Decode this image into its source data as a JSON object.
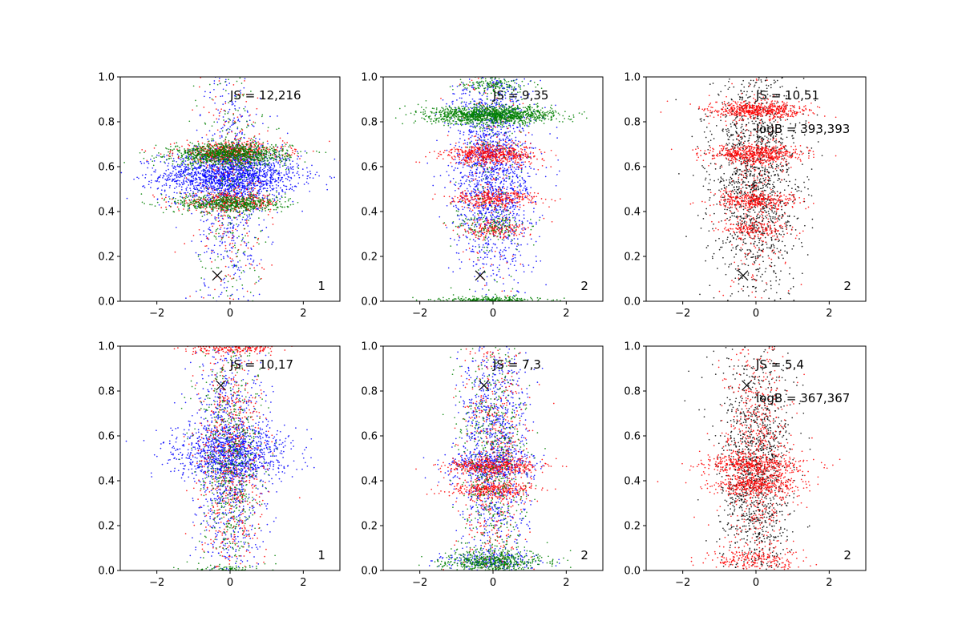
{
  "chart_data": [
    {
      "type": "scatter",
      "xlim": [
        -3,
        3
      ],
      "ylim": [
        0,
        1
      ],
      "xticks": [
        -2,
        0,
        2
      ],
      "yticks": [
        0.0,
        0.2,
        0.4,
        0.6,
        0.8,
        1.0
      ],
      "xtick_labels": [
        "−2",
        "0",
        "2"
      ],
      "ytick_labels": [
        "0.0",
        "0.2",
        "0.4",
        "0.6",
        "0.8",
        "1.0"
      ],
      "annotations": [
        "JS = 12,216"
      ],
      "corner_label": "1",
      "marker": {
        "symbol": "x",
        "x": -0.35,
        "y": 0.115
      },
      "series": [
        {
          "color": "#0000ff",
          "clusters": [
            {
              "y": 0.56,
              "sx": 0.95,
              "sy": 0.055,
              "n": 1700
            },
            {
              "y": 0.5,
              "sx": 0.45,
              "sy": 0.28,
              "n": 600
            }
          ]
        },
        {
          "color": "#ff0000",
          "clusters": [
            {
              "y": 0.665,
              "sx": 0.75,
              "sy": 0.022,
              "n": 550
            },
            {
              "y": 0.44,
              "sx": 0.7,
              "sy": 0.02,
              "n": 350
            },
            {
              "y": 0.5,
              "sx": 0.45,
              "sy": 0.3,
              "n": 280
            }
          ]
        },
        {
          "color": "#008000",
          "clusters": [
            {
              "y": 0.655,
              "sx": 0.8,
              "sy": 0.025,
              "n": 1000
            },
            {
              "y": 0.435,
              "sx": 0.75,
              "sy": 0.02,
              "n": 550
            },
            {
              "y": 0.55,
              "sx": 0.45,
              "sy": 0.3,
              "n": 280
            }
          ]
        }
      ]
    },
    {
      "type": "scatter",
      "xlim": [
        -3,
        3
      ],
      "ylim": [
        0,
        1
      ],
      "xticks": [
        -2,
        0,
        2
      ],
      "yticks": [
        0.0,
        0.2,
        0.4,
        0.6,
        0.8,
        1.0
      ],
      "xtick_labels": [
        "−2",
        "0",
        "2"
      ],
      "ytick_labels": [
        "0.0",
        "0.2",
        "0.4",
        "0.6",
        "0.8",
        "1.0"
      ],
      "annotations": [
        "JS = 9,35"
      ],
      "corner_label": "2",
      "marker": {
        "symbol": "x",
        "x": -0.35,
        "y": 0.115
      },
      "series": [
        {
          "color": "#0000ff",
          "clusters": [
            {
              "y": 0.6,
              "sx": 0.55,
              "sy": 0.25,
              "n": 1800
            }
          ]
        },
        {
          "color": "#ff0000",
          "clusters": [
            {
              "y": 0.655,
              "sx": 0.65,
              "sy": 0.022,
              "n": 550
            },
            {
              "y": 0.455,
              "sx": 0.6,
              "sy": 0.02,
              "n": 330
            },
            {
              "y": 0.32,
              "sx": 0.5,
              "sy": 0.02,
              "n": 180
            },
            {
              "y": 0.6,
              "sx": 0.45,
              "sy": 0.3,
              "n": 200
            }
          ]
        },
        {
          "color": "#008000",
          "clusters": [
            {
              "y": 0.83,
              "sx": 0.85,
              "sy": 0.02,
              "n": 1300
            },
            {
              "y": 0.005,
              "sx": 0.7,
              "sy": 0.008,
              "n": 300
            },
            {
              "y": 0.34,
              "sx": 0.5,
              "sy": 0.03,
              "n": 120
            },
            {
              "y": 0.96,
              "sx": 0.5,
              "sy": 0.02,
              "n": 150
            },
            {
              "y": 0.6,
              "sx": 0.45,
              "sy": 0.3,
              "n": 200
            }
          ]
        }
      ]
    },
    {
      "type": "scatter",
      "xlim": [
        -3,
        3
      ],
      "ylim": [
        0,
        1
      ],
      "xticks": [
        -2,
        0,
        2
      ],
      "yticks": [
        0.0,
        0.2,
        0.4,
        0.6,
        0.8,
        1.0
      ],
      "xtick_labels": [
        "−2",
        "0",
        "2"
      ],
      "ytick_labels": [
        "0.0",
        "0.2",
        "0.4",
        "0.6",
        "0.8",
        "1.0"
      ],
      "annotations": [
        "JS = 10,51",
        "logB = 393,393"
      ],
      "corner_label": "2",
      "marker": {
        "symbol": "x",
        "x": -0.35,
        "y": 0.115
      },
      "series": [
        {
          "color": "#000000",
          "clusters": [
            {
              "y": 0.55,
              "sx": 0.6,
              "sy": 0.25,
              "n": 1500
            }
          ]
        },
        {
          "color": "#ff0000",
          "clusters": [
            {
              "y": 0.85,
              "sx": 0.7,
              "sy": 0.02,
              "n": 550
            },
            {
              "y": 0.655,
              "sx": 0.65,
              "sy": 0.022,
              "n": 550
            },
            {
              "y": 0.45,
              "sx": 0.6,
              "sy": 0.02,
              "n": 350
            },
            {
              "y": 0.32,
              "sx": 0.5,
              "sy": 0.02,
              "n": 160
            },
            {
              "y": 0.5,
              "sx": 0.45,
              "sy": 0.3,
              "n": 300
            }
          ]
        }
      ]
    },
    {
      "type": "scatter",
      "xlim": [
        -3,
        3
      ],
      "ylim": [
        0,
        1
      ],
      "xticks": [
        -2,
        0,
        2
      ],
      "yticks": [
        0.0,
        0.2,
        0.4,
        0.6,
        0.8,
        1.0
      ],
      "xtick_labels": [
        "−2",
        "0",
        "2"
      ],
      "ytick_labels": [
        "0.0",
        "0.2",
        "0.4",
        "0.6",
        "0.8",
        "1.0"
      ],
      "annotations": [
        "JS = 10,17"
      ],
      "corner_label": "1",
      "marker": {
        "symbol": "x",
        "x": -0.25,
        "y": 0.825
      },
      "series": [
        {
          "color": "#0000ff",
          "clusters": [
            {
              "y": 0.56,
              "sx": 0.8,
              "sy": 0.04,
              "n": 500
            },
            {
              "y": 0.47,
              "sx": 0.8,
              "sy": 0.035,
              "n": 400
            },
            {
              "y": 0.5,
              "sx": 0.5,
              "sy": 0.28,
              "n": 1000
            }
          ]
        },
        {
          "color": "#ff0000",
          "clusters": [
            {
              "y": 0.99,
              "sx": 0.6,
              "sy": 0.012,
              "n": 200
            },
            {
              "y": 0.5,
              "sx": 0.45,
              "sy": 0.28,
              "n": 700
            }
          ]
        },
        {
          "color": "#008000",
          "clusters": [
            {
              "y": 0.5,
              "sx": 0.45,
              "sy": 0.28,
              "n": 650
            },
            {
              "y": 0.0,
              "sx": 0.5,
              "sy": 0.012,
              "n": 120
            }
          ]
        }
      ]
    },
    {
      "type": "scatter",
      "xlim": [
        -3,
        3
      ],
      "ylim": [
        0,
        1
      ],
      "xticks": [
        -2,
        0,
        2
      ],
      "yticks": [
        0.0,
        0.2,
        0.4,
        0.6,
        0.8,
        1.0
      ],
      "xtick_labels": [
        "−2",
        "0",
        "2"
      ],
      "ytick_labels": [
        "0.0",
        "0.2",
        "0.4",
        "0.6",
        "0.8",
        "1.0"
      ],
      "annotations": [
        "JS = 7,3"
      ],
      "corner_label": "2",
      "marker": {
        "symbol": "x",
        "x": -0.25,
        "y": 0.825
      },
      "series": [
        {
          "color": "#0000ff",
          "clusters": [
            {
              "y": 0.47,
              "sx": 0.7,
              "sy": 0.03,
              "n": 250
            },
            {
              "y": 0.5,
              "sx": 0.45,
              "sy": 0.28,
              "n": 1100
            },
            {
              "y": 0.04,
              "sx": 0.7,
              "sy": 0.02,
              "n": 200
            }
          ]
        },
        {
          "color": "#ff0000",
          "clusters": [
            {
              "y": 0.465,
              "sx": 0.65,
              "sy": 0.018,
              "n": 400
            },
            {
              "y": 0.36,
              "sx": 0.6,
              "sy": 0.018,
              "n": 300
            },
            {
              "y": 0.5,
              "sx": 0.45,
              "sy": 0.28,
              "n": 600
            }
          ]
        },
        {
          "color": "#008000",
          "clusters": [
            {
              "y": 0.04,
              "sx": 0.75,
              "sy": 0.025,
              "n": 550
            },
            {
              "y": 0.5,
              "sx": 0.45,
              "sy": 0.28,
              "n": 600
            }
          ]
        }
      ]
    },
    {
      "type": "scatter",
      "xlim": [
        -3,
        3
      ],
      "ylim": [
        0,
        1
      ],
      "xticks": [
        -2,
        0,
        2
      ],
      "yticks": [
        0.0,
        0.2,
        0.4,
        0.6,
        0.8,
        1.0
      ],
      "xtick_labels": [
        "−2",
        "0",
        "2"
      ],
      "ytick_labels": [
        "0.0",
        "0.2",
        "0.4",
        "0.6",
        "0.8",
        "1.0"
      ],
      "annotations": [
        "JS = 5,4",
        "logB = 367,367"
      ],
      "corner_label": "2",
      "marker": {
        "symbol": "x",
        "x": -0.25,
        "y": 0.825
      },
      "series": [
        {
          "color": "#000000",
          "clusters": [
            {
              "y": 0.45,
              "sx": 0.5,
              "sy": 0.27,
              "n": 1300
            }
          ]
        },
        {
          "color": "#ff0000",
          "clusters": [
            {
              "y": 0.47,
              "sx": 0.7,
              "sy": 0.022,
              "n": 400
            },
            {
              "y": 0.38,
              "sx": 0.65,
              "sy": 0.022,
              "n": 350
            },
            {
              "y": 0.05,
              "sx": 0.6,
              "sy": 0.03,
              "n": 200
            },
            {
              "y": 0.5,
              "sx": 0.45,
              "sy": 0.28,
              "n": 700
            }
          ]
        }
      ]
    }
  ]
}
